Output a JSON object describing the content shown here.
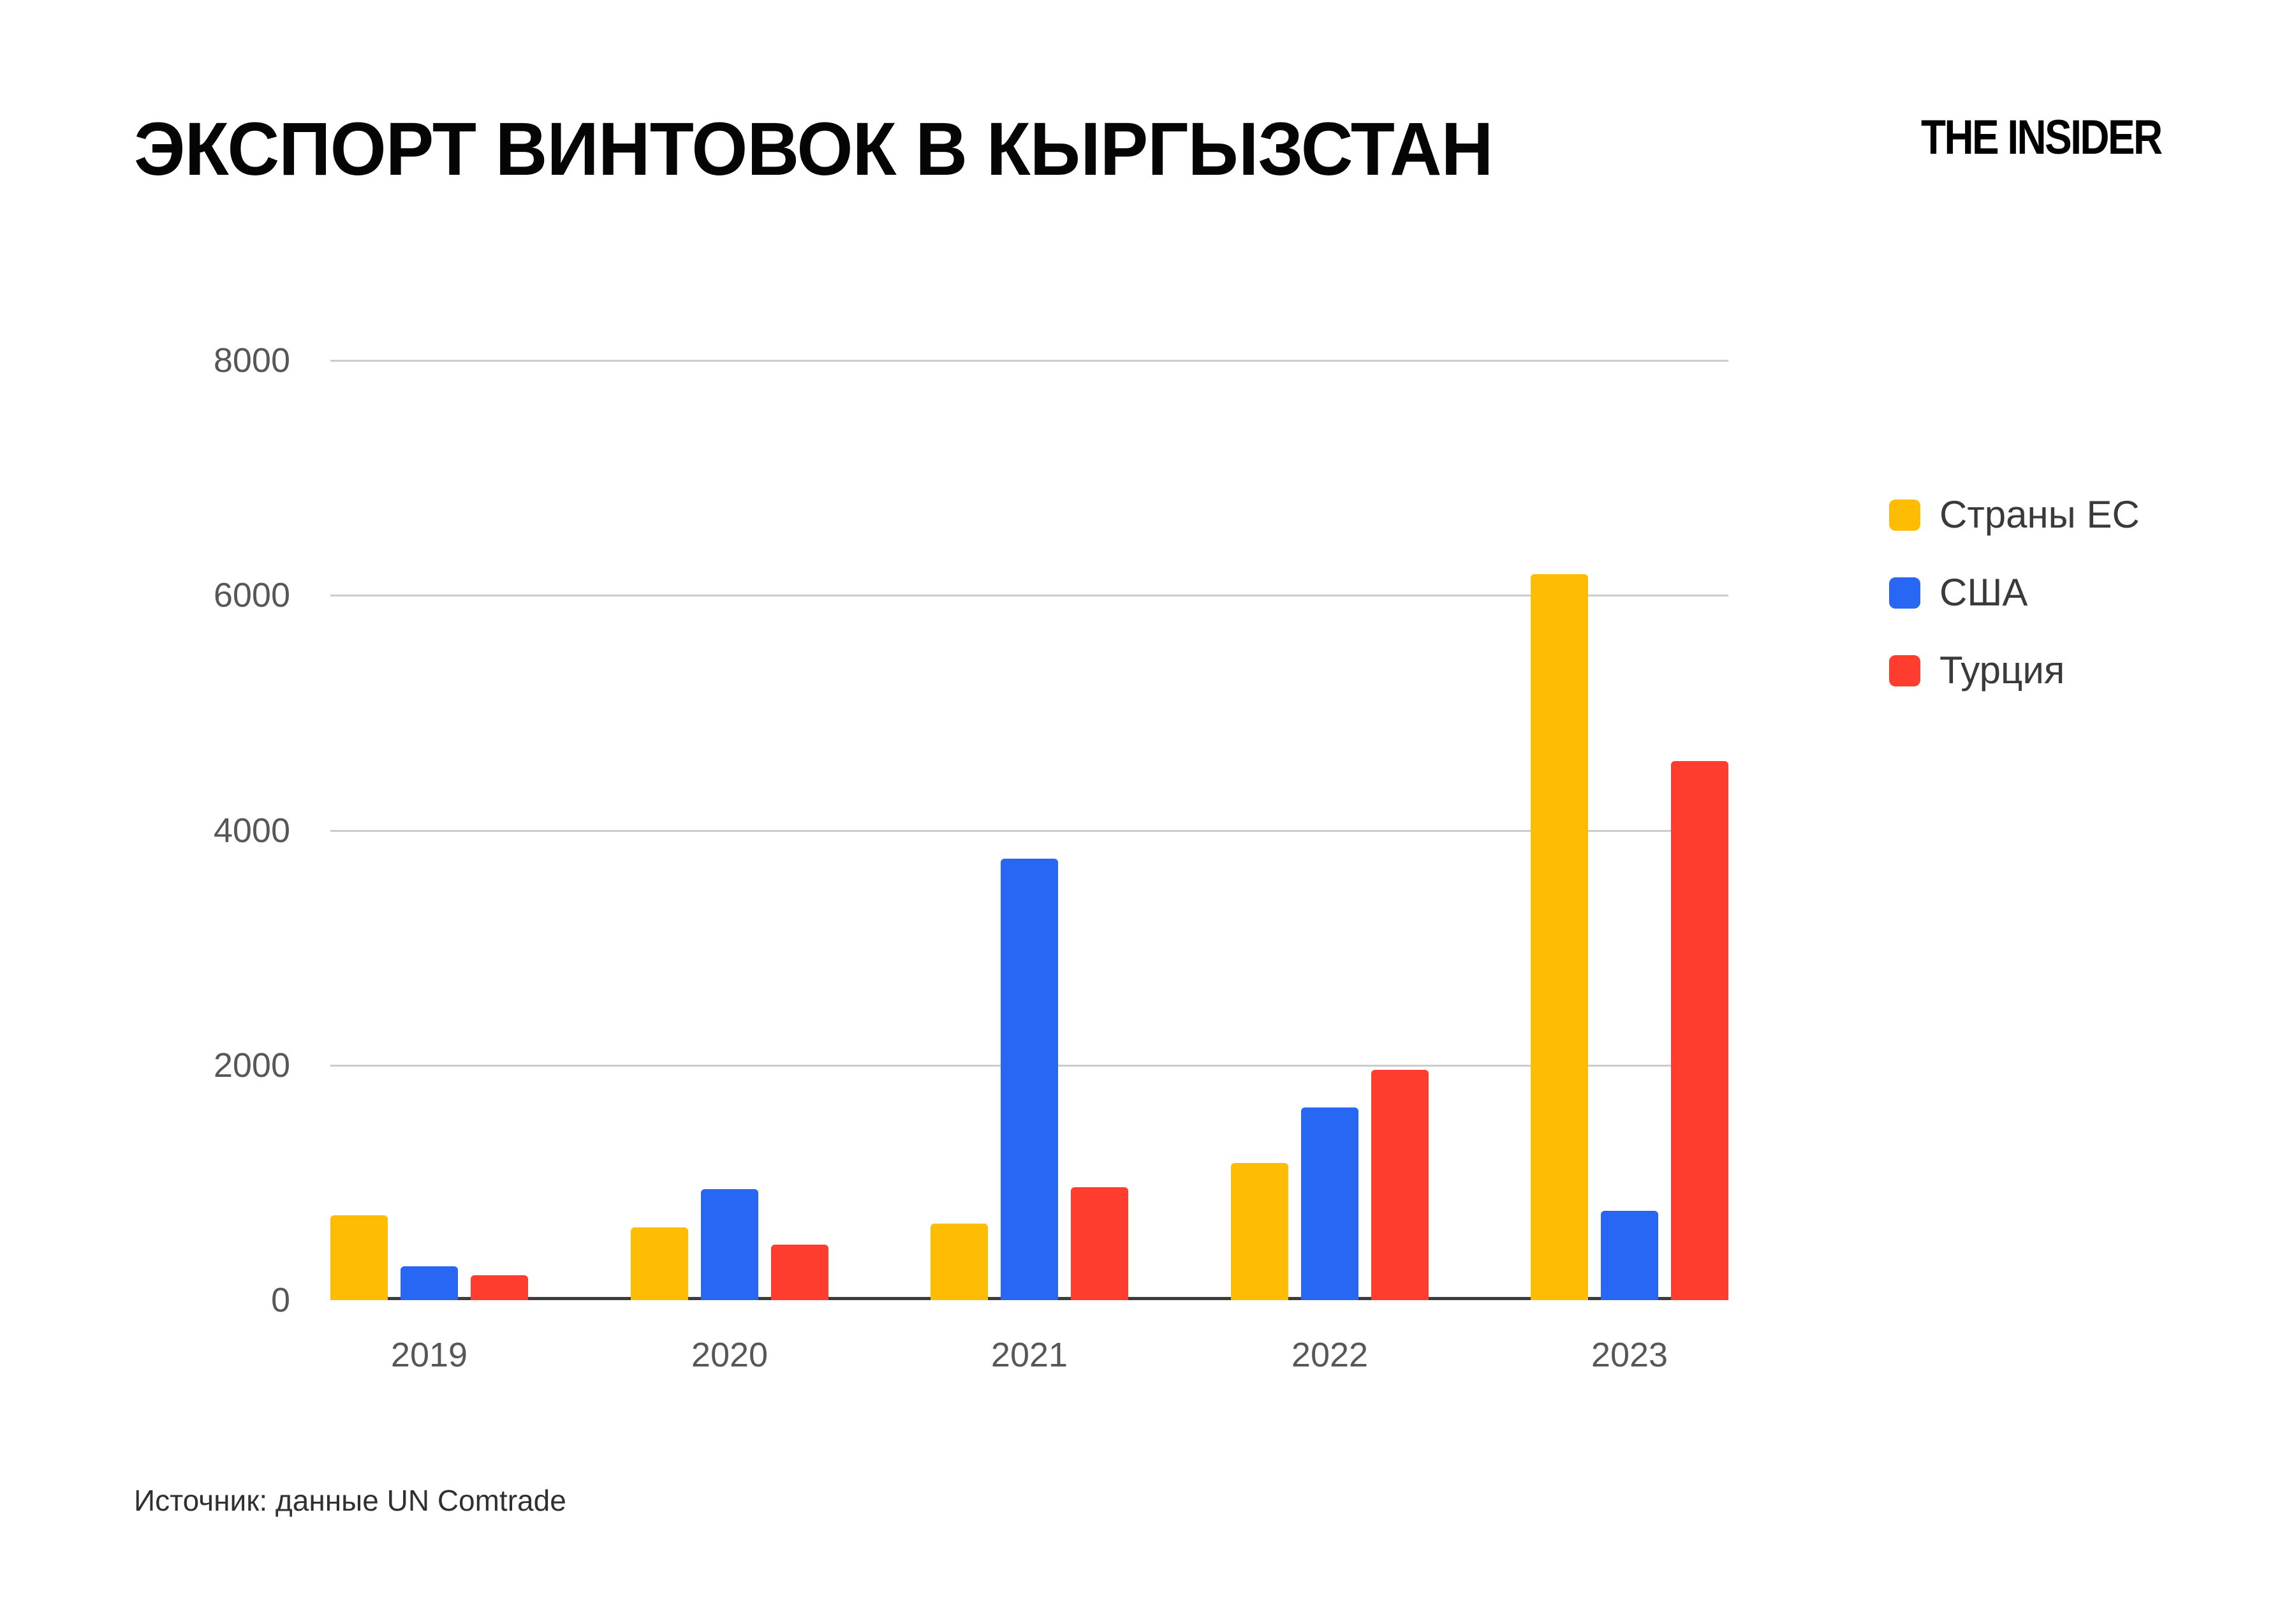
{
  "header": {
    "brand": "THE INSIDER"
  },
  "source": {
    "text": "Источник: данные UN Comtrade"
  },
  "colors": {
    "background": "#FFFFFF",
    "title": "#050505",
    "gridline": "#CCCCCC",
    "axis_line": "#3D3D3D",
    "tick_label": "#575757",
    "legend_label": "#3A3A3A",
    "source_text": "#303030",
    "series_eu": "#FFBC05",
    "series_usa": "#2767F4",
    "series_turkey": "#FF3D2E"
  },
  "chart_data": {
    "type": "bar",
    "title": "ЭКСПОРТ ВИНТОВОК В КЫРГЫЗСТАН",
    "categories": [
      "2019",
      "2020",
      "2021",
      "2022",
      "2023"
    ],
    "series": [
      {
        "name": "Страны ЕС",
        "color": "#FFBC05",
        "values": [
          720,
          620,
          650,
          1170,
          6180
        ]
      },
      {
        "name": "США",
        "color": "#2767F4",
        "values": [
          290,
          945,
          3760,
          1640,
          760
        ]
      },
      {
        "name": "Турция",
        "color": "#FF3D2E",
        "values": [
          210,
          475,
          960,
          1960,
          4590
        ]
      }
    ],
    "xlabel": "",
    "ylabel": "",
    "ylim": [
      0,
      8000
    ],
    "yticks": [
      0,
      2000,
      4000,
      6000,
      8000
    ],
    "grid": true,
    "legend_position": "right"
  }
}
